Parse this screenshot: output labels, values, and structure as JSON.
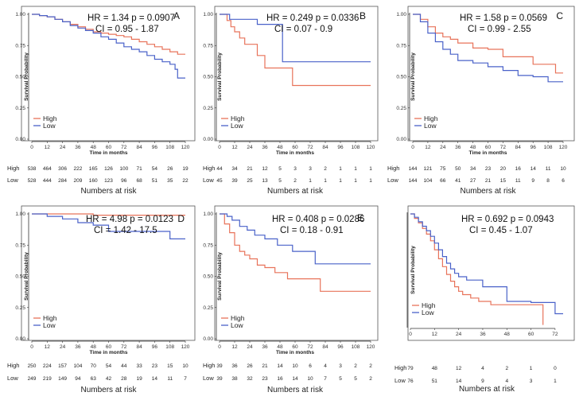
{
  "colors": {
    "high": "#e8735a",
    "low": "#4a62c9"
  },
  "chart_data": [
    {
      "type": "line",
      "panel": "A",
      "annotation": [
        "HR =  1.34 p = 0.0907",
        "CI =  0.95 - 1.87"
      ],
      "xlabel": "Time in months",
      "ylabel": "Survival Probability",
      "xticks": [
        0,
        12,
        24,
        36,
        48,
        60,
        72,
        84,
        96,
        108,
        120
      ],
      "yticks": [
        "0.00",
        "0.25",
        "0.50",
        "0.75",
        "1.00"
      ],
      "xlim": [
        0,
        120
      ],
      "ylim": [
        0,
        1
      ],
      "legend": [
        "High",
        "Low"
      ],
      "series": [
        {
          "name": "High",
          "x": [
            0,
            6,
            12,
            18,
            24,
            30,
            36,
            42,
            48,
            54,
            60,
            66,
            72,
            78,
            84,
            90,
            96,
            102,
            108,
            114,
            120
          ],
          "y": [
            1.0,
            0.99,
            0.98,
            0.96,
            0.94,
            0.92,
            0.9,
            0.88,
            0.86,
            0.85,
            0.84,
            0.83,
            0.82,
            0.8,
            0.78,
            0.76,
            0.74,
            0.72,
            0.7,
            0.68,
            0.68
          ]
        },
        {
          "name": "Low",
          "x": [
            0,
            6,
            12,
            18,
            24,
            30,
            36,
            42,
            48,
            54,
            60,
            66,
            72,
            78,
            84,
            90,
            96,
            102,
            108,
            112,
            114,
            120
          ],
          "y": [
            1.0,
            0.99,
            0.98,
            0.96,
            0.94,
            0.91,
            0.89,
            0.87,
            0.85,
            0.82,
            0.8,
            0.77,
            0.74,
            0.72,
            0.7,
            0.67,
            0.64,
            0.62,
            0.6,
            0.56,
            0.49,
            0.49
          ]
        }
      ],
      "risk_table": {
        "title": "Numbers at risk",
        "rows": [
          {
            "label": "High",
            "values": [
              "538",
              "464",
              "306",
              "222",
              "165",
              "126",
              "100",
              "71",
              "54",
              "26",
              "19"
            ]
          },
          {
            "label": "Low",
            "values": [
              "528",
              "444",
              "284",
              "209",
              "160",
              "123",
              "96",
              "68",
              "51",
              "35",
              "22"
            ]
          }
        ]
      }
    },
    {
      "type": "line",
      "panel": "B",
      "annotation": [
        "HR = 0.249 p = 0.0336",
        "CI =  0.07 - 0.9"
      ],
      "xlabel": "Time in months",
      "ylabel": "Survival Probability",
      "xticks": [
        0,
        12,
        24,
        36,
        48,
        60,
        72,
        84,
        96,
        108,
        120
      ],
      "yticks": [
        "0.00",
        "0.25",
        "0.50",
        "0.75",
        "1.00"
      ],
      "xlim": [
        0,
        120
      ],
      "ylim": [
        0,
        1
      ],
      "legend": [
        "High",
        "Low"
      ],
      "series": [
        {
          "name": "High",
          "x": [
            0,
            6,
            9,
            12,
            16,
            20,
            24,
            30,
            36,
            44,
            48,
            58,
            120
          ],
          "y": [
            1.0,
            0.95,
            0.9,
            0.86,
            0.81,
            0.76,
            0.76,
            0.67,
            0.57,
            0.57,
            0.57,
            0.43,
            0.43
          ]
        },
        {
          "name": "Low",
          "x": [
            0,
            8,
            30,
            48,
            50,
            120
          ],
          "y": [
            1.0,
            0.96,
            0.92,
            0.92,
            0.62,
            0.62
          ]
        }
      ],
      "risk_table": {
        "title": "Numbers at risk",
        "rows": [
          {
            "label": "High",
            "values": [
              "44",
              "34",
              "21",
              "12",
              "5",
              "3",
              "3",
              "2",
              "1",
              "1",
              "1"
            ]
          },
          {
            "label": "Low",
            "values": [
              "45",
              "39",
              "25",
              "13",
              "5",
              "2",
              "1",
              "1",
              "1",
              "1",
              "1"
            ]
          }
        ]
      }
    },
    {
      "type": "line",
      "panel": "C",
      "annotation": [
        "HR =  1.58 p = 0.0569",
        "CI =  0.99 - 2.55"
      ],
      "xlabel": "Time in months",
      "ylabel": "Survival Probability",
      "xticks": [
        0,
        12,
        24,
        36,
        48,
        60,
        72,
        84,
        96,
        108,
        120
      ],
      "yticks": [
        "0.00",
        "0.25",
        "0.50",
        "0.75",
        "1.00"
      ],
      "xlim": [
        0,
        120
      ],
      "ylim": [
        0,
        1
      ],
      "legend": [
        "High",
        "Low"
      ],
      "series": [
        {
          "name": "High",
          "x": [
            0,
            6,
            12,
            18,
            24,
            30,
            36,
            48,
            60,
            72,
            84,
            96,
            108,
            114,
            120
          ],
          "y": [
            1.0,
            0.96,
            0.9,
            0.85,
            0.82,
            0.8,
            0.77,
            0.73,
            0.72,
            0.66,
            0.66,
            0.6,
            0.6,
            0.53,
            0.53
          ]
        },
        {
          "name": "Low",
          "x": [
            0,
            6,
            12,
            18,
            24,
            30,
            36,
            48,
            60,
            72,
            84,
            96,
            108,
            120
          ],
          "y": [
            1.0,
            0.94,
            0.85,
            0.78,
            0.72,
            0.68,
            0.63,
            0.61,
            0.58,
            0.55,
            0.51,
            0.5,
            0.46,
            0.46
          ]
        }
      ],
      "risk_table": {
        "title": "Numbers at risk",
        "rows": [
          {
            "label": "High",
            "values": [
              "144",
              "121",
              "75",
              "50",
              "34",
              "23",
              "20",
              "16",
              "14",
              "11",
              "10"
            ]
          },
          {
            "label": "Low",
            "values": [
              "144",
              "104",
              "66",
              "41",
              "27",
              "21",
              "15",
              "11",
              "9",
              "8",
              "6"
            ]
          }
        ]
      }
    },
    {
      "type": "line",
      "panel": "D",
      "annotation": [
        "HR = 4.98 p = 0.0123",
        "CI = 1.42 - 17.5"
      ],
      "xlabel": "Time in months",
      "ylabel": "Survival Probability",
      "xticks": [
        0,
        12,
        24,
        36,
        48,
        60,
        72,
        84,
        96,
        108,
        120
      ],
      "yticks": [
        "0.00",
        "0.25",
        "0.50",
        "0.75",
        "1.00"
      ],
      "xlim": [
        0,
        120
      ],
      "ylim": [
        0,
        1
      ],
      "legend": [
        "High",
        "Low"
      ],
      "series": [
        {
          "name": "High",
          "x": [
            0,
            24,
            48,
            72,
            120
          ],
          "y": [
            1.0,
            1.0,
            0.99,
            0.99,
            0.99
          ]
        },
        {
          "name": "Low",
          "x": [
            0,
            12,
            24,
            36,
            48,
            60,
            72,
            84,
            96,
            108,
            120
          ],
          "y": [
            1.0,
            0.98,
            0.96,
            0.93,
            0.91,
            0.86,
            0.86,
            0.86,
            0.86,
            0.8,
            0.8
          ]
        }
      ],
      "risk_table": {
        "title": "Numbers at risk",
        "rows": [
          {
            "label": "High",
            "values": [
              "250",
              "224",
              "157",
              "104",
              "70",
              "54",
              "44",
              "33",
              "23",
              "15",
              "10"
            ]
          },
          {
            "label": "Low",
            "values": [
              "249",
              "219",
              "149",
              "94",
              "63",
              "42",
              "28",
              "19",
              "14",
              "11",
              "7"
            ]
          }
        ]
      }
    },
    {
      "type": "line",
      "panel": "E",
      "annotation": [
        "HR = 0.408 p = 0.0286",
        "CI =  0.18 - 0.91"
      ],
      "xlabel": "Time in months",
      "ylabel": "Survival Probability",
      "xticks": [
        0,
        12,
        24,
        36,
        48,
        60,
        72,
        84,
        96,
        108,
        120
      ],
      "yticks": [
        "0.00",
        "0.25",
        "0.50",
        "0.75",
        "1.00"
      ],
      "xlim": [
        0,
        120
      ],
      "ylim": [
        0,
        1
      ],
      "legend": [
        "High",
        "Low"
      ],
      "series": [
        {
          "name": "High",
          "x": [
            0,
            4,
            8,
            12,
            16,
            20,
            24,
            30,
            36,
            44,
            54,
            62,
            78,
            80,
            120
          ],
          "y": [
            1.0,
            0.92,
            0.85,
            0.75,
            0.7,
            0.67,
            0.64,
            0.59,
            0.57,
            0.53,
            0.48,
            0.48,
            0.48,
            0.38,
            0.38
          ]
        },
        {
          "name": "Low",
          "x": [
            0,
            6,
            10,
            16,
            22,
            28,
            36,
            46,
            58,
            70,
            76,
            120
          ],
          "y": [
            1.0,
            0.98,
            0.95,
            0.9,
            0.87,
            0.83,
            0.8,
            0.75,
            0.7,
            0.7,
            0.6,
            0.6
          ]
        }
      ],
      "risk_table": {
        "title": "Numbers at risk",
        "rows": [
          {
            "label": "High",
            "values": [
              "39",
              "36",
              "26",
              "21",
              "14",
              "10",
              "6",
              "4",
              "3",
              "2",
              "2"
            ]
          },
          {
            "label": "Low",
            "values": [
              "39",
              "38",
              "32",
              "23",
              "16",
              "14",
              "10",
              "7",
              "5",
              "5",
              "2"
            ]
          }
        ]
      }
    },
    {
      "type": "line",
      "panel": "F",
      "annotation": [
        "HR = 0.692 p = 0.0943",
        "CI =  0.45 - 1.07"
      ],
      "xlabel": "",
      "ylabel": "Survival Probability",
      "xticks": [
        0,
        12,
        24,
        36,
        48,
        60,
        72
      ],
      "yticks": [],
      "xlim": [
        0,
        76
      ],
      "ylim": [
        0,
        1
      ],
      "legend": [
        "High",
        "Low"
      ],
      "series": [
        {
          "name": "High",
          "x": [
            0,
            2,
            4,
            6,
            8,
            10,
            12,
            14,
            16,
            18,
            20,
            22,
            24,
            26,
            30,
            34,
            40,
            48,
            60,
            66,
            66
          ],
          "y": [
            1.0,
            0.96,
            0.92,
            0.87,
            0.82,
            0.76,
            0.68,
            0.6,
            0.53,
            0.46,
            0.4,
            0.35,
            0.31,
            0.28,
            0.25,
            0.22,
            0.19,
            0.19,
            0.19,
            0.19,
            0.01
          ]
        },
        {
          "name": "Low",
          "x": [
            0,
            2,
            4,
            6,
            8,
            10,
            12,
            14,
            16,
            18,
            20,
            22,
            24,
            28,
            36,
            48,
            60,
            66,
            72,
            76
          ],
          "y": [
            1.0,
            0.97,
            0.93,
            0.89,
            0.85,
            0.8,
            0.74,
            0.68,
            0.62,
            0.56,
            0.51,
            0.47,
            0.44,
            0.41,
            0.35,
            0.22,
            0.21,
            0.21,
            0.11,
            0.11
          ]
        }
      ],
      "risk_table": {
        "title": "Numbers at risk",
        "rows": [
          {
            "label": "High",
            "values": [
              "79",
              "48",
              "12",
              "4",
              "2",
              "1",
              "0"
            ]
          },
          {
            "label": "Low",
            "values": [
              "76",
              "51",
              "14",
              "9",
              "4",
              "3",
              "1"
            ]
          }
        ]
      }
    }
  ]
}
